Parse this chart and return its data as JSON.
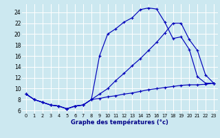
{
  "xlabel": "Graphe des températures (°c)",
  "bg_color": "#cce8f0",
  "grid_color": "#ffffff",
  "line_color": "#0000bb",
  "xlim": [
    -0.5,
    23.5
  ],
  "ylim": [
    5.5,
    25.5
  ],
  "xticks": [
    0,
    1,
    2,
    3,
    4,
    5,
    6,
    7,
    8,
    9,
    10,
    11,
    12,
    13,
    14,
    15,
    16,
    17,
    18,
    19,
    20,
    21,
    22,
    23
  ],
  "yticks": [
    6,
    8,
    10,
    12,
    14,
    16,
    18,
    20,
    22,
    24
  ],
  "curve1_x": [
    0,
    1,
    2,
    3,
    4,
    5,
    6,
    7,
    8,
    9,
    10,
    11,
    12,
    13,
    14,
    15,
    16,
    17,
    18,
    19,
    20,
    21,
    22,
    23
  ],
  "curve1_y": [
    9.0,
    8.0,
    7.5,
    7.0,
    6.8,
    6.3,
    6.8,
    7.0,
    8.0,
    16.0,
    20.0,
    21.0,
    22.2,
    23.0,
    24.5,
    24.8,
    24.6,
    22.2,
    19.2,
    19.5,
    17.2,
    12.2,
    11.0,
    11.0
  ],
  "curve2_x": [
    0,
    1,
    2,
    3,
    4,
    5,
    6,
    7,
    8,
    9,
    10,
    11,
    12,
    13,
    14,
    15,
    16,
    17,
    18,
    19,
    20,
    21,
    22,
    23
  ],
  "curve2_y": [
    9.0,
    8.0,
    7.5,
    7.0,
    6.8,
    6.3,
    6.8,
    7.0,
    8.0,
    9.0,
    10.0,
    11.5,
    12.8,
    14.2,
    15.5,
    17.0,
    18.5,
    20.2,
    22.0,
    22.0,
    19.0,
    17.0,
    12.5,
    11.0
  ],
  "curve3_x": [
    0,
    1,
    2,
    3,
    4,
    5,
    6,
    7,
    8,
    9,
    10,
    11,
    12,
    13,
    14,
    15,
    16,
    17,
    18,
    19,
    20,
    21,
    22,
    23
  ],
  "curve3_y": [
    9.0,
    8.0,
    7.5,
    7.0,
    6.8,
    6.3,
    6.8,
    7.0,
    8.0,
    8.2,
    8.5,
    8.7,
    9.0,
    9.2,
    9.5,
    9.8,
    10.0,
    10.2,
    10.4,
    10.6,
    10.7,
    10.7,
    10.8,
    11.0
  ]
}
